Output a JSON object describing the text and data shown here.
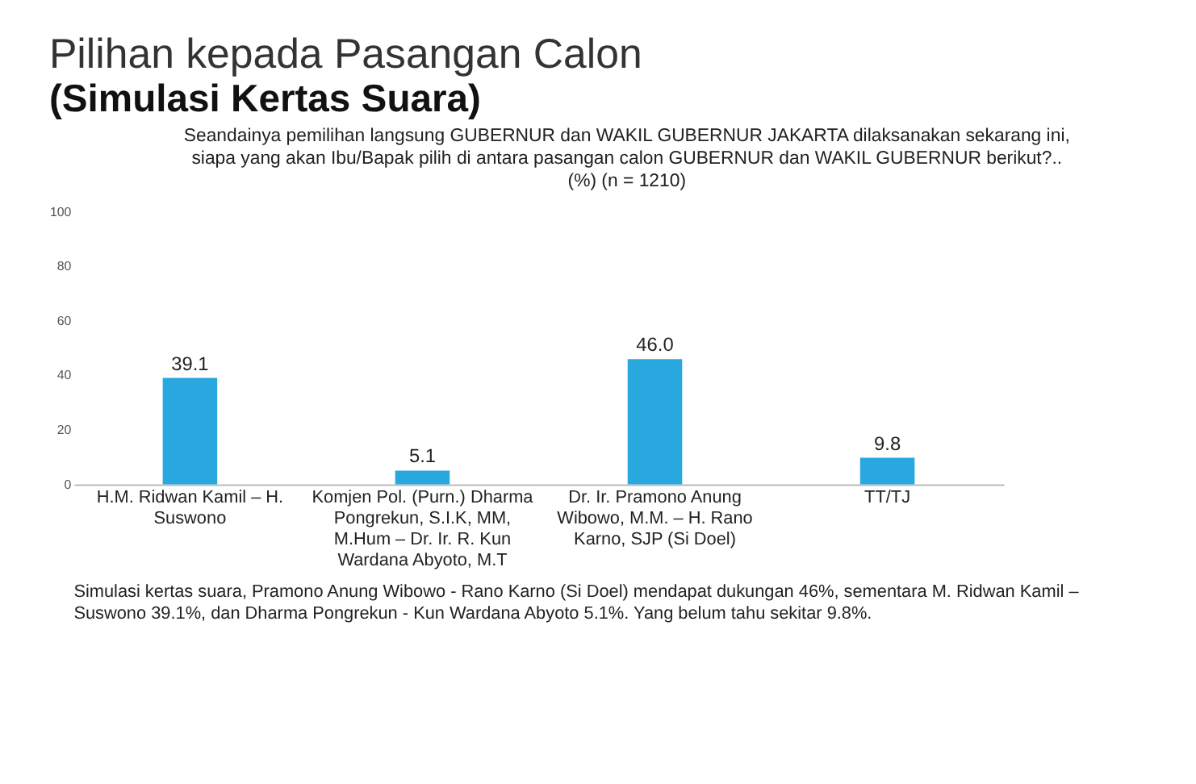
{
  "chart_data": {
    "type": "bar",
    "title": "Pilihan kepada Pasangan Calon",
    "subtitle": "(Simulasi Kertas Suara)",
    "annotations": [
      "Seandainya pemilihan langsung GUBERNUR dan WAKIL GUBERNUR JAKARTA dilaksanakan sekarang ini, siapa yang akan Ibu/Bapak pilih di antara pasangan calon GUBERNUR dan WAKIL GUBERNUR berikut?.. (%) (n = 1210)",
      "Simulasi kertas suara, Pramono Anung Wibowo - Rano Karno (Si Doel) mendapat dukungan 46%, sementara M. Ridwan Kamil – Suswono 39.1%, dan Dharma Pongrekun - Kun Wardana Abyoto 5.1%. Yang belum tahu sekitar 9.8%."
    ],
    "categories": [
      "H.M. Ridwan Kamil – H. Suswono",
      "Komjen Pol. (Purn.) Dharma Pongrekun, S.I.K, MM, M.Hum – Dr. Ir. R. Kun Wardana Abyoto, M.T",
      "Dr. Ir. Pramono Anung Wibowo, M.M. – H. Rano Karno, SJP (Si Doel)",
      "TT/TJ"
    ],
    "values": [
      39.1,
      5.1,
      46.0,
      9.8
    ],
    "value_labels": [
      "39.1",
      "5.1",
      "46.0",
      "9.8"
    ],
    "color": "#29a8e0",
    "ylim": [
      0,
      100
    ],
    "yticks": [
      0,
      20,
      40,
      60,
      80,
      100
    ],
    "grid": false
  }
}
